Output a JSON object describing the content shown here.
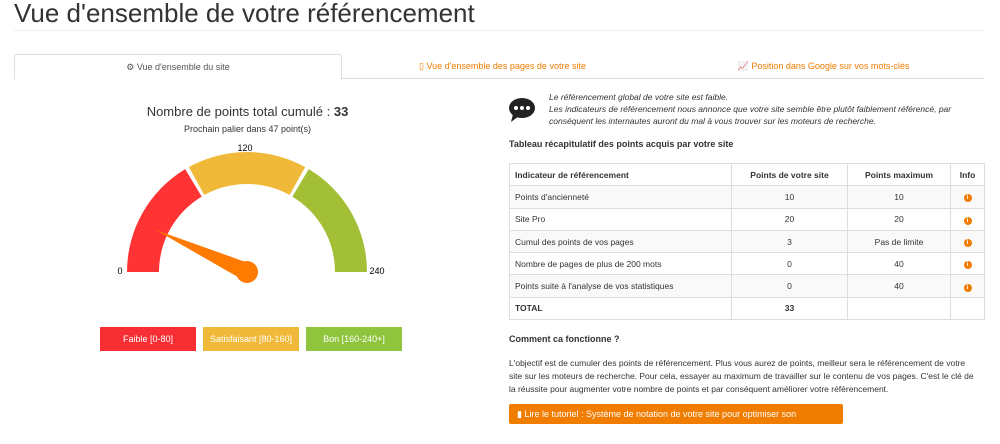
{
  "title": "Vue d'ensemble de votre référencement",
  "tabs": [
    {
      "icon": "dashboard-icon",
      "label": "Vue d'ensemble du site"
    },
    {
      "icon": "file-icon",
      "label": "Vue d'ensemble des pages de votre site"
    },
    {
      "icon": "line-chart-icon",
      "label": "Position dans Google sur vos mots-clés"
    }
  ],
  "gauge": {
    "total_label": "Nombre de points total cumulé : ",
    "total": "33",
    "next": "Prochain palier dans 47 point(s)",
    "min": "0",
    "mid": "120",
    "max": "240",
    "value": 33,
    "range_max": 240,
    "colors": {
      "faible": "#ff3333",
      "satisfaisant": "#f0b93a",
      "bon": "#a2bf35",
      "needle": "#ff7a00"
    }
  },
  "legend": [
    {
      "label": "Faible [0-80]",
      "color": "#f72f35"
    },
    {
      "label": "Satisfaisant [80-160]",
      "color": "#f0b93a"
    },
    {
      "label": "Bon [160-240+]",
      "color": "#8fc43d"
    }
  ],
  "message": {
    "line1": "Le référencement global de votre site est faible.",
    "line2": "Les indicateurs de référencement nous annonce que votre site semble être plutôt faiblement référencé, par",
    "line3": "conséquent les internautes auront du mal à vous trouver sur les moteurs de recherche."
  },
  "table_title": "Tableau récapitulatif des points acquis par votre site",
  "table": {
    "headers": [
      "Indicateur de référencement",
      "Points de votre site",
      "Points maximum",
      "Info"
    ],
    "rows": [
      [
        "Points d'ancienneté",
        "10",
        "10"
      ],
      [
        "Site Pro",
        "20",
        "20"
      ],
      [
        "Cumul des points de vos pages",
        "3",
        "Pas de limite"
      ],
      [
        "Nombre de pages de plus de 200 mots",
        "0",
        "40"
      ],
      [
        "Points suite à l'analyse de vos statistiques",
        "0",
        "40"
      ]
    ],
    "total": [
      "TOTAL",
      "33"
    ]
  },
  "how_title": "Comment ca fonctionne ?",
  "how_text": "L'objectif est de cumuler des points de référencement. Plus vous aurez de points, meilleur sera le référencement de votre site sur les moteurs de recherche. Pour cela, essayer au maximum de travailler sur le contenu de vos pages. C'est le clé de la réussite pour augmenter votre nombre de points et par conséquent améliorer votre référencement.",
  "button": "Lire le tutoriel : Système de notation de votre site pour optimiser son référencement"
}
